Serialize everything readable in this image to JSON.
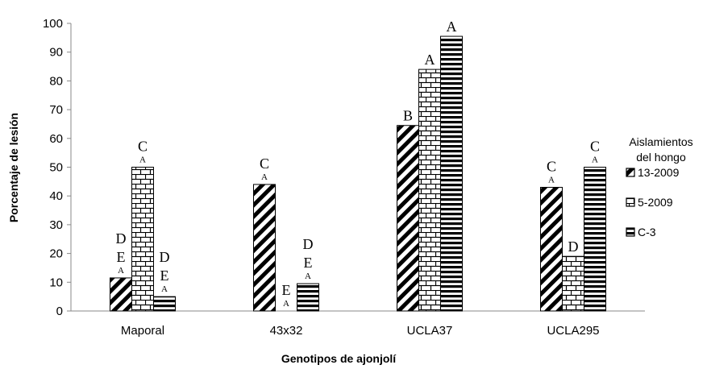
{
  "chart_data": {
    "type": "bar",
    "categories": [
      "Maporal",
      "43x32",
      "UCLA37",
      "UCLA295"
    ],
    "series": [
      {
        "name": "13-2009",
        "values": [
          11.5,
          44,
          64.5,
          43
        ],
        "pattern": "diagonal"
      },
      {
        "name": "5-2009",
        "values": [
          50,
          0,
          84,
          19
        ],
        "pattern": "brick"
      },
      {
        "name": "C-3",
        "values": [
          5,
          9.5,
          95.5,
          50
        ],
        "pattern": "horizontal"
      }
    ],
    "ylabel": "Porcentaje de lesión",
    "xlabel": "Genotipos de ajonjolí",
    "ylim": [
      0,
      100
    ],
    "yticks": [
      "0",
      "10",
      "20",
      "30",
      "40",
      "50",
      "60",
      "70",
      "80",
      "90",
      "100"
    ],
    "grid": false,
    "legend": {
      "title_line1": "Aislamientos",
      "title_line2": "del hongo",
      "position": "right"
    },
    "annotations": [
      {
        "category": 0,
        "series": 0,
        "letters": [
          "D",
          "E"
        ],
        "small": "A"
      },
      {
        "category": 0,
        "series": 1,
        "letters": [
          "C"
        ],
        "small": "A"
      },
      {
        "category": 0,
        "series": 2,
        "letters": [
          "D",
          "E"
        ],
        "small": "A"
      },
      {
        "category": 1,
        "series": 0,
        "letters": [
          "C"
        ],
        "small": "A"
      },
      {
        "category": 1,
        "series": 1,
        "letters": [
          "E"
        ],
        "small": "A"
      },
      {
        "category": 1,
        "series": 2,
        "letters": [
          "D",
          "E"
        ],
        "small": "A"
      },
      {
        "category": 2,
        "series": 0,
        "letters": [
          "B"
        ],
        "small": ""
      },
      {
        "category": 2,
        "series": 1,
        "letters": [
          "A"
        ],
        "small": ""
      },
      {
        "category": 2,
        "series": 2,
        "letters": [
          "A"
        ],
        "small": ""
      },
      {
        "category": 3,
        "series": 0,
        "letters": [
          "C"
        ],
        "small": "A"
      },
      {
        "category": 3,
        "series": 1,
        "letters": [
          "D"
        ],
        "small": ""
      },
      {
        "category": 3,
        "series": 2,
        "letters": [
          "C"
        ],
        "small": "A"
      }
    ]
  }
}
